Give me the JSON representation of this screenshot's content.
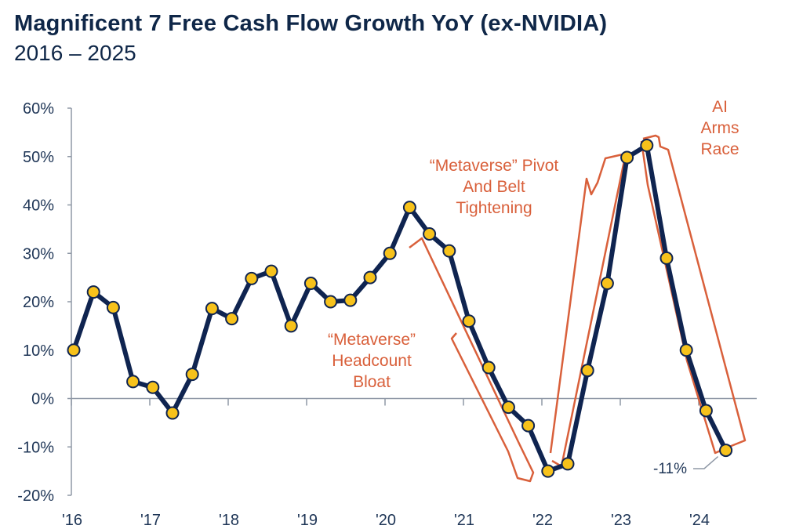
{
  "header": {
    "title": "Magnificent 7 Free Cash Flow Growth YoY (ex-NVIDIA)",
    "subtitle": "2016 – 2025"
  },
  "chart_data": {
    "type": "line",
    "title": "Magnificent 7 Free Cash Flow Growth YoY (ex-NVIDIA)",
    "subtitle": "2016 – 2025",
    "xlabel": "",
    "ylabel": "",
    "x_tick_labels": [
      "'16",
      "'17",
      "'18",
      "'19",
      "'20",
      "'21",
      "'22",
      "'23",
      "'24"
    ],
    "y_tick_labels": [
      "60%",
      "50%",
      "40%",
      "30%",
      "20%",
      "10%",
      "0%",
      "-10%",
      "-20%"
    ],
    "ylim": [
      -20,
      60
    ],
    "grid": false,
    "series": [
      {
        "values": [
          10,
          22,
          18.8,
          3.5,
          2.3,
          -3,
          5,
          18.6,
          16.5,
          24.8,
          26.3,
          15,
          23.8,
          20,
          20.3,
          25,
          30,
          39.5,
          34,
          30.5,
          16,
          6.4,
          -1.8,
          -5.6,
          -15,
          -13.5,
          5.8,
          23.8,
          49.8,
          52.3,
          29,
          10,
          -2.5,
          -10.7
        ]
      }
    ],
    "annotations": [
      {
        "lines": [
          "“Metaverse”",
          "Headcount",
          "Bloat"
        ]
      },
      {
        "lines": [
          "“Metaverse” Pivot",
          "And Belt",
          "Tightening"
        ]
      },
      {
        "lines": [
          "AI",
          "Arms",
          "Race"
        ]
      }
    ],
    "end_label": "-11%",
    "colors": {
      "line": "#0f2450",
      "marker_fill": "#f7c21b",
      "marker_edge": "#0f2450",
      "annotation": "#d9603b",
      "axis": "#8f98a6",
      "text": "#1e3556"
    }
  }
}
